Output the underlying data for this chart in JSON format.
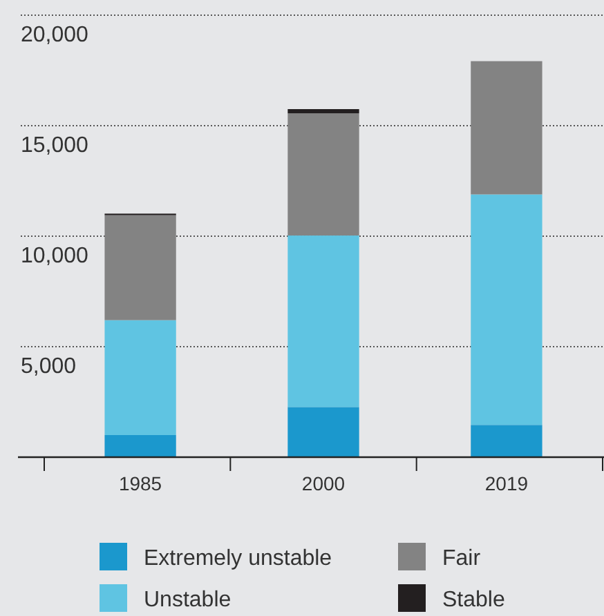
{
  "chart_data": {
    "type": "bar",
    "stacked": true,
    "categories": [
      "1985",
      "2000",
      "2019"
    ],
    "series": [
      {
        "name": "Extremely unstable",
        "color": "#1b98cd",
        "values": [
          1000,
          2270,
          1460
        ]
      },
      {
        "name": "Unstable",
        "color": "#5fc4e2",
        "values": [
          5200,
          7760,
          10430
        ]
      },
      {
        "name": "Fair",
        "color": "#838383",
        "values": [
          4750,
          5530,
          6030
        ]
      },
      {
        "name": "Stable",
        "color": "#231f20",
        "values": [
          70,
          190,
          0
        ]
      }
    ],
    "ylim": [
      0,
      20000
    ],
    "yticks": [
      {
        "value": 5000,
        "label": "5,000"
      },
      {
        "value": 10000,
        "label": "10,000"
      },
      {
        "value": 15000,
        "label": "15,000"
      },
      {
        "value": 20000,
        "label": "20,000"
      }
    ],
    "grid": "y",
    "legend": "bottom"
  }
}
